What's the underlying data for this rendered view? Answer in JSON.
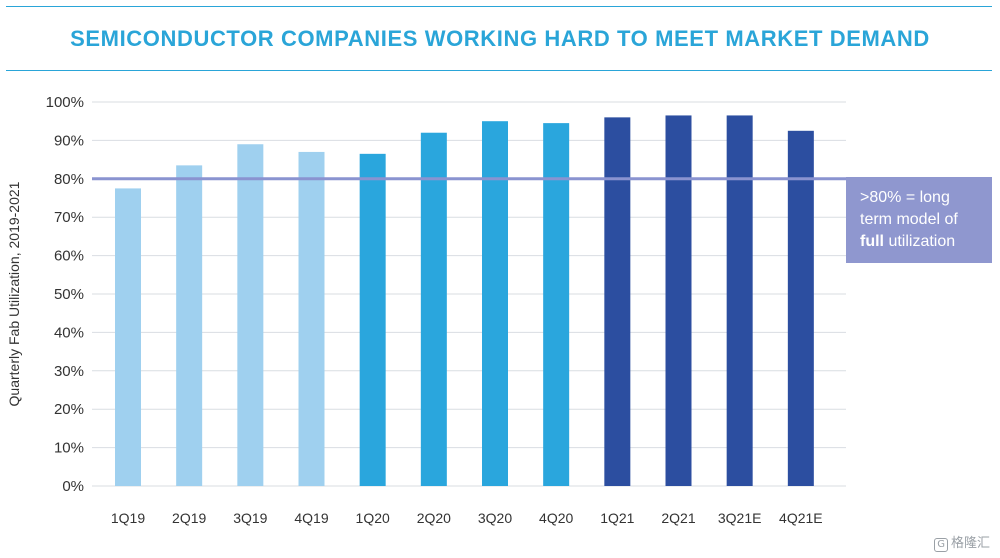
{
  "title": "SEMICONDUCTOR COMPANIES WORKING HARD TO MEET MARKET DEMAND",
  "callout": {
    "line1": ">80% = long",
    "line2": "term model of",
    "bold": "full",
    "rest": " utilization"
  },
  "watermark": "格隆汇",
  "chart_data": {
    "type": "bar",
    "ylabel": "Quarterly Fab Utilization, 2019-2021",
    "ylim": [
      0,
      100
    ],
    "yticks": [
      0,
      10,
      20,
      30,
      40,
      50,
      60,
      70,
      80,
      90,
      100
    ],
    "ytick_suffix": "%",
    "grid": true,
    "reference_line": {
      "value": 80,
      "color": "#8a93d0"
    },
    "categories": [
      "1Q19",
      "2Q19",
      "3Q19",
      "4Q19",
      "1Q20",
      "2Q20",
      "3Q20",
      "4Q20",
      "1Q21",
      "2Q21",
      "3Q21E",
      "4Q21E"
    ],
    "values": [
      77.5,
      83.5,
      89,
      87,
      86.5,
      92,
      95,
      94.5,
      96,
      96.5,
      96.5,
      92.5
    ],
    "colors": [
      "#9fd0ef",
      "#9fd0ef",
      "#9fd0ef",
      "#9fd0ef",
      "#2aa6dd",
      "#2aa6dd",
      "#2aa6dd",
      "#2aa6dd",
      "#2c4ea0",
      "#2c4ea0",
      "#2c4ea0",
      "#2c4ea0"
    ]
  }
}
